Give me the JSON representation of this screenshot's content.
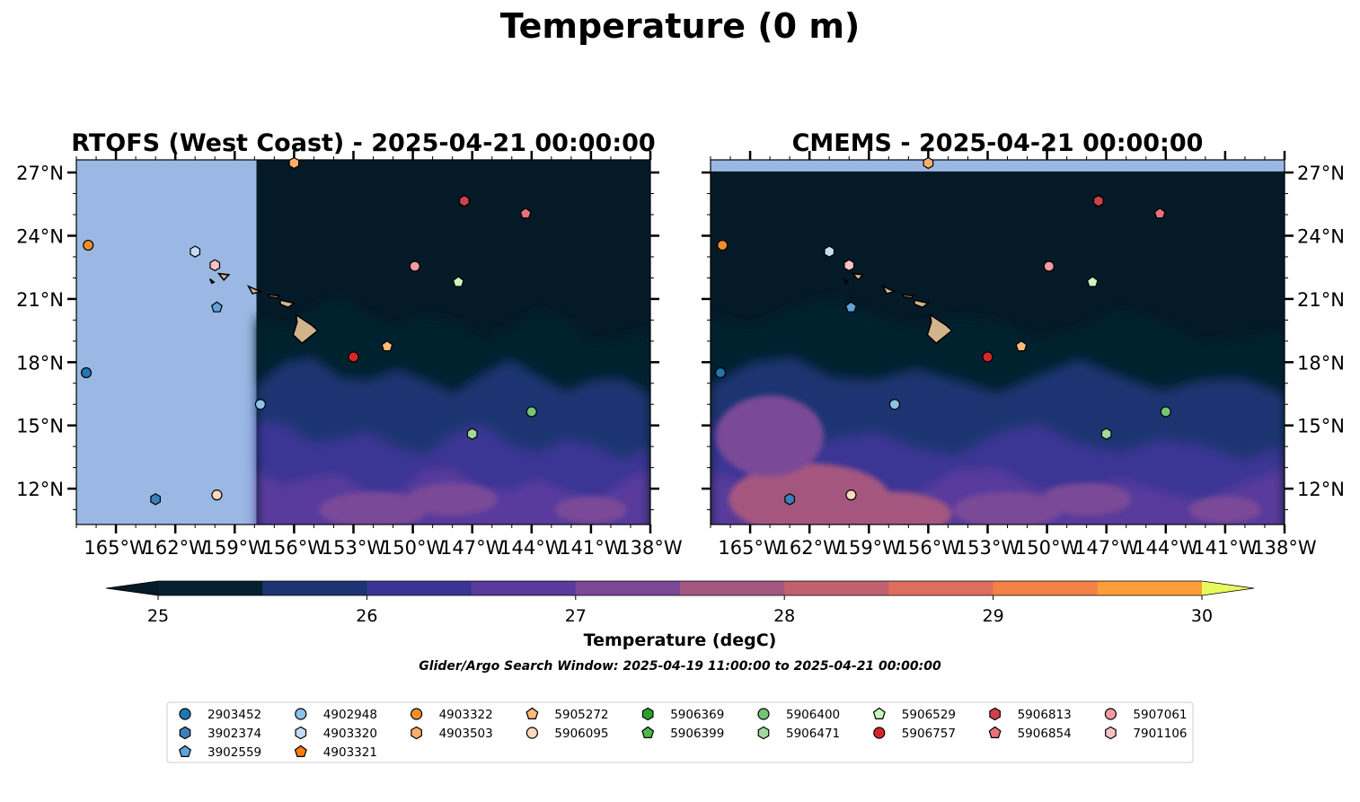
{
  "chart_data": {
    "type": "heatmap",
    "title": "Temperature (0 m)",
    "panels": [
      {
        "title": "RTOFS (West Coast) - 2025-04-21 00:00:00",
        "xlim": [
          -167,
          -138
        ],
        "ylim": [
          10.3,
          27.6
        ],
        "coverage_lon": [
          -157.9,
          -138
        ],
        "coverage_lat": [
          10.3,
          27.6
        ],
        "lat_ticks_side": "left"
      },
      {
        "title": "CMEMS - 2025-04-21 00:00:00",
        "xlim": [
          -167,
          -138
        ],
        "ylim": [
          10.3,
          27.6
        ],
        "coverage_lon": [
          -167,
          -138
        ],
        "coverage_lat": [
          10.3,
          27.05
        ],
        "lat_ticks_side": "right"
      }
    ],
    "x_ticks": [
      -165,
      -162,
      -159,
      -156,
      -153,
      -150,
      -147,
      -144,
      -141,
      -138
    ],
    "x_tick_labels": [
      "165°W",
      "162°W",
      "159°W",
      "156°W",
      "153°W",
      "150°W",
      "147°W",
      "144°W",
      "141°W",
      "138°W"
    ],
    "y_ticks": [
      12,
      15,
      18,
      21,
      24,
      27
    ],
    "y_tick_labels": [
      "12°N",
      "15°N",
      "18°N",
      "21°N",
      "24°N",
      "27°N"
    ],
    "colorbar": {
      "label": "Temperature (degC)",
      "levels": [
        25,
        25.5,
        26,
        26.5,
        27,
        27.5,
        28,
        28.5,
        29,
        29.5,
        30
      ],
      "tick_values": [
        25,
        26,
        27,
        28,
        29,
        30
      ],
      "tick_labels": [
        "25",
        "26",
        "27",
        "28",
        "29",
        "30"
      ],
      "colors": [
        "#05202f",
        "#1c3472",
        "#3a3494",
        "#583b9c",
        "#7a4897",
        "#a4577f",
        "#c1616f",
        "#dd6e5d",
        "#f48145",
        "#fd9e3a",
        "#f8c33e"
      ],
      "under_color": "#041a27",
      "over_color": "#e8fa5b"
    },
    "search_window": "Glider/Argo Search Window: 2025-04-19 11:00:00 to 2025-04-21 00:00:00",
    "floats": [
      {
        "id": "2903452",
        "marker": "circle",
        "color": "#1f77b4",
        "lon": -166.5,
        "lat": 17.5
      },
      {
        "id": "3902374",
        "marker": "hexagon",
        "color": "#3d7fb8",
        "lon": -163.0,
        "lat": 11.5
      },
      {
        "id": "3902559",
        "marker": "pentagon",
        "color": "#60a3d8",
        "lon": -159.9,
        "lat": 20.6
      },
      {
        "id": "4902948",
        "marker": "circle",
        "color": "#8ec1e8",
        "lon": -157.7,
        "lat": 16.0
      },
      {
        "id": "4903320",
        "marker": "hexagon",
        "color": "#c6dbf4",
        "lon": -161.0,
        "lat": 23.25
      },
      {
        "id": "4903321",
        "marker": "pentagon",
        "color": "#ff7f0e",
        "lon": -144.3,
        "lat": 25.05
      },
      {
        "id": "4903322",
        "marker": "circle",
        "color": "#f28e2b",
        "lon": -166.4,
        "lat": 23.55
      },
      {
        "id": "4903503",
        "marker": "hexagon",
        "color": "#fdae6b",
        "lon": -156.0,
        "lat": 27.45
      },
      {
        "id": "5905272",
        "marker": "pentagon",
        "color": "#ffbb78",
        "lon": -151.3,
        "lat": 18.75
      },
      {
        "id": "5906095",
        "marker": "circle",
        "color": "#fdd9bd",
        "lon": -159.9,
        "lat": 11.7
      },
      {
        "id": "5906369",
        "marker": "hexagon",
        "color": "#2ca02c",
        "lon": -147.4,
        "lat": 25.65
      },
      {
        "id": "5906399",
        "marker": "pentagon",
        "color": "#4db84d",
        "lon": -147.4,
        "lat": 25.65
      },
      {
        "id": "5906400",
        "marker": "circle",
        "color": "#74c476",
        "lon": -144.0,
        "lat": 15.65
      },
      {
        "id": "5906471",
        "marker": "hexagon",
        "color": "#a1d99b",
        "lon": -147.0,
        "lat": 14.6
      },
      {
        "id": "5906529",
        "marker": "pentagon",
        "color": "#c7f7bf",
        "lon": -147.7,
        "lat": 21.8
      },
      {
        "id": "5906757",
        "marker": "circle",
        "color": "#d62728",
        "lon": -153.0,
        "lat": 18.25
      },
      {
        "id": "5906813",
        "marker": "hexagon",
        "color": "#d0424b",
        "lon": -147.4,
        "lat": 25.65
      },
      {
        "id": "5906854",
        "marker": "pentagon",
        "color": "#e8727a",
        "lon": -144.3,
        "lat": 25.05
      },
      {
        "id": "5907061",
        "marker": "circle",
        "color": "#f19ba1",
        "lon": -149.9,
        "lat": 22.55
      },
      {
        "id": "7901106",
        "marker": "hexagon",
        "color": "#fbc2c4",
        "lon": -160.0,
        "lat": 22.6
      }
    ],
    "legend": {
      "placement": "bottom",
      "columns": [
        [
          "2903452",
          "3902374",
          "3902559"
        ],
        [
          "4902948",
          "4903320",
          "4903321"
        ],
        [
          "4903322",
          "4903503"
        ],
        [
          "5905272",
          "5906095"
        ],
        [
          "5906369",
          "5906399"
        ],
        [
          "5906400",
          "5906471"
        ],
        [
          "5906529",
          "5906757"
        ],
        [
          "5906813",
          "5906854"
        ],
        [
          "5907061",
          "7901106"
        ]
      ]
    },
    "land_color": "#d2b48c",
    "no_data_color": "#9ab8e3",
    "grid": false
  }
}
